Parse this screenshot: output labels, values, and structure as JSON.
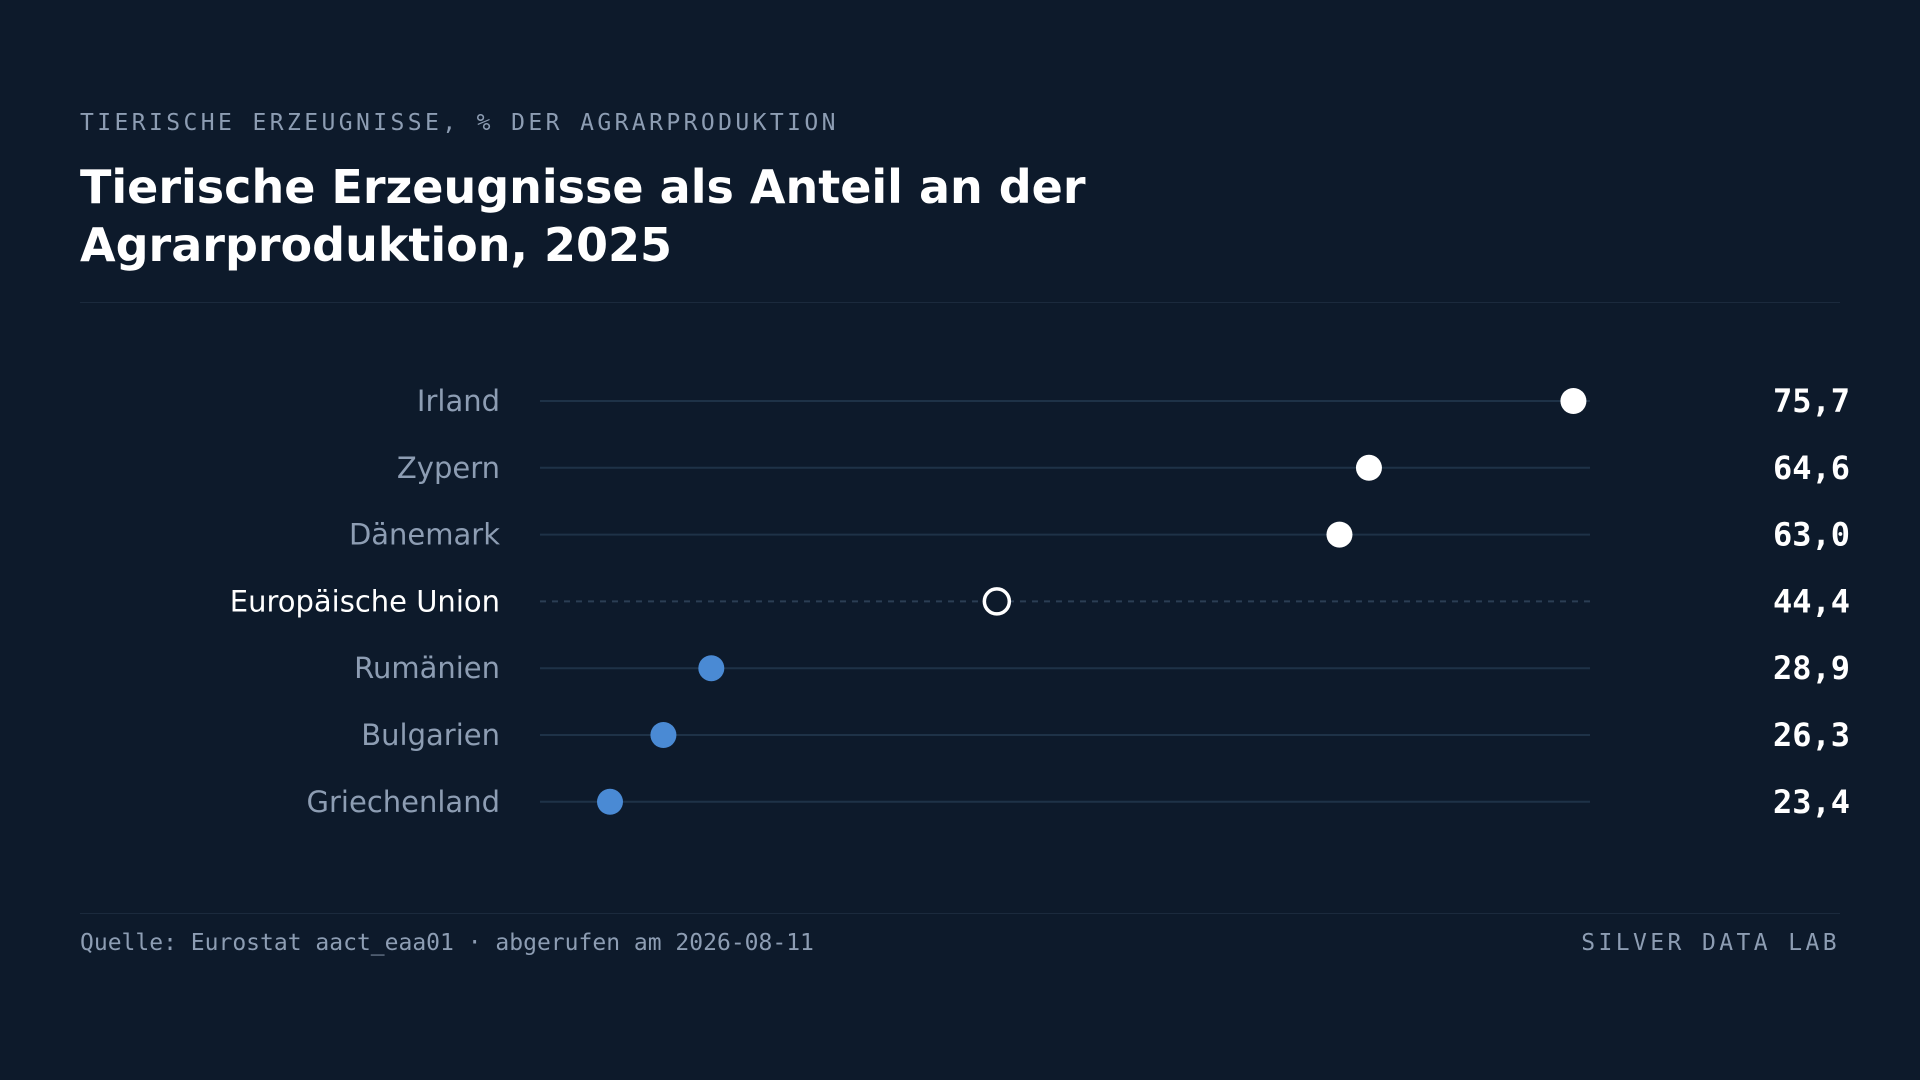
{
  "header": {
    "kicker": "TIERISCHE ERZEUGNISSE, % DER AGRARPRODUKTION",
    "title": "Tierische Erzeugnisse als Anteil an der Agrarproduktion, 2025"
  },
  "footer": {
    "source": "Quelle: Eurostat aact_eaa01 · abgerufen am 2026-08-11",
    "brand": "SILVER DATA LAB"
  },
  "colors": {
    "background": "#0d1a2b",
    "high": "#ffffff",
    "low": "#4a8ad4",
    "reference": "#ffffff",
    "track": "#1e3247",
    "label": "#8d9db3"
  },
  "chart_data": {
    "type": "dot",
    "xlim": [
      20,
      80
    ],
    "grid": false,
    "categories": [
      "Irland",
      "Zypern",
      "Dänemark",
      "Europäische Union",
      "Rumänien",
      "Bulgarien",
      "Griechenland"
    ],
    "values": [
      75.7,
      64.6,
      63.0,
      44.4,
      28.9,
      26.3,
      23.4
    ],
    "value_labels": [
      "75,7",
      "64,6",
      "63,0",
      "44,4",
      "28,9",
      "26,3",
      "23,4"
    ],
    "groups": [
      "high",
      "high",
      "high",
      "reference",
      "low",
      "low",
      "low"
    ]
  }
}
